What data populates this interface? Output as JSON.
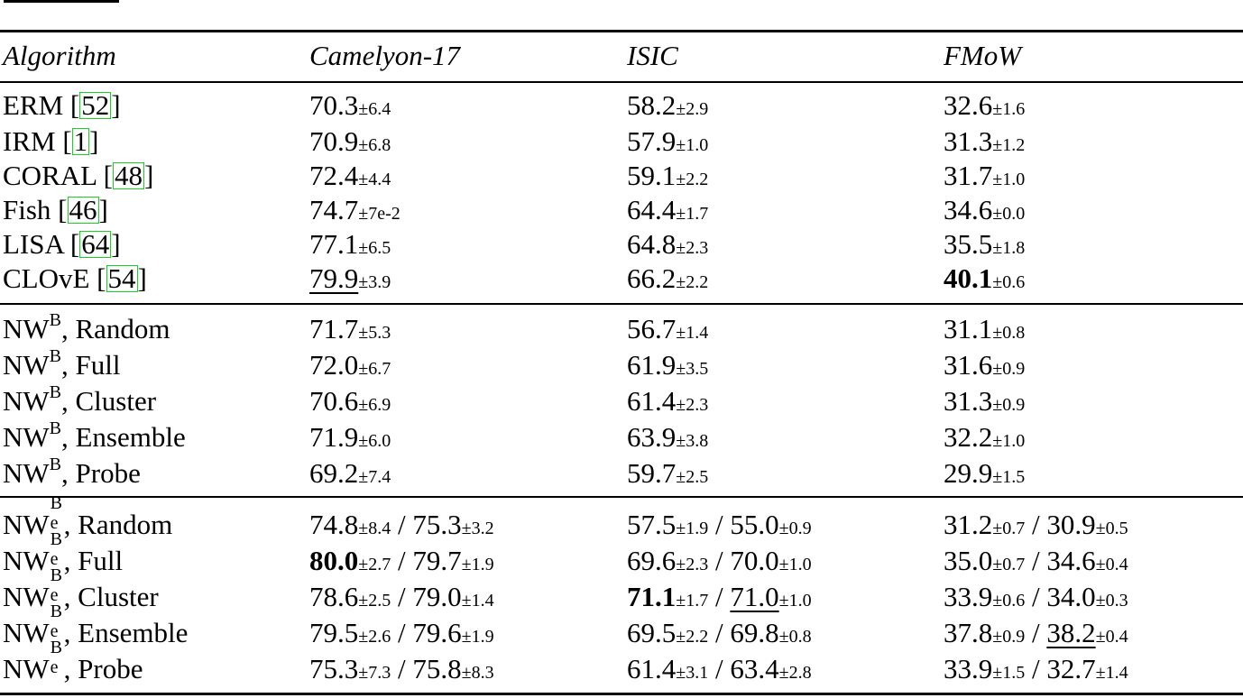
{
  "columns": [
    "Algorithm",
    "Camelyon-17",
    "ISIC",
    "FMoW"
  ],
  "section1": [
    {
      "name": "ERM [",
      "cite": "52",
      "close": "]",
      "cam": {
        "v": "70.3",
        "pm": "±6.4"
      },
      "isic": {
        "v": "58.2",
        "pm": "±2.9"
      },
      "fmow": {
        "v": "32.6",
        "pm": "±1.6"
      }
    },
    {
      "name": "IRM [",
      "cite": "1",
      "close": "]",
      "cam": {
        "v": "70.9",
        "pm": "±6.8"
      },
      "isic": {
        "v": "57.9",
        "pm": "±1.0"
      },
      "fmow": {
        "v": "31.3",
        "pm": "±1.2"
      }
    },
    {
      "name": "CORAL [",
      "cite": "48",
      "close": "]",
      "cam": {
        "v": "72.4",
        "pm": "±4.4"
      },
      "isic": {
        "v": "59.1",
        "pm": "±2.2"
      },
      "fmow": {
        "v": "31.7",
        "pm": "±1.0"
      }
    },
    {
      "name": "Fish [",
      "cite": "46",
      "close": "]",
      "cam": {
        "v": "74.7",
        "pm": "±7e-2"
      },
      "isic": {
        "v": "64.4",
        "pm": "±1.7"
      },
      "fmow": {
        "v": "34.6",
        "pm": "±0.0"
      }
    },
    {
      "name": "LISA [",
      "cite": "64",
      "close": "]",
      "cam": {
        "v": "77.1",
        "pm": "±6.5"
      },
      "isic": {
        "v": "64.8",
        "pm": "±2.3"
      },
      "fmow": {
        "v": "35.5",
        "pm": "±1.8"
      }
    },
    {
      "name": "CLOvE [",
      "cite": "54",
      "close": "]",
      "cam": {
        "v": "79.9",
        "pm": "±3.9"
      },
      "isic": {
        "v": "66.2",
        "pm": "±2.2"
      },
      "fmow": {
        "v": "40.1",
        "pm": "±0.6"
      }
    }
  ],
  "section2": {
    "prefix": "NW",
    "sup": "B",
    "rows": [
      {
        "suffix": ", Random",
        "cam": {
          "v": "71.7",
          "pm": "±5.3"
        },
        "isic": {
          "v": "56.7",
          "pm": "±1.4"
        },
        "fmow": {
          "v": "31.1",
          "pm": "±0.8"
        }
      },
      {
        "suffix": ", Full",
        "cam": {
          "v": "72.0",
          "pm": "±6.7"
        },
        "isic": {
          "v": "61.9",
          "pm": "±3.5"
        },
        "fmow": {
          "v": "31.6",
          "pm": "±0.9"
        }
      },
      {
        "suffix": ", Cluster",
        "cam": {
          "v": "70.6",
          "pm": "±6.9"
        },
        "isic": {
          "v": "61.4",
          "pm": "±2.3"
        },
        "fmow": {
          "v": "31.3",
          "pm": "±0.9"
        }
      },
      {
        "suffix": ", Ensemble",
        "cam": {
          "v": "71.9",
          "pm": "±6.0"
        },
        "isic": {
          "v": "63.9",
          "pm": "±3.8"
        },
        "fmow": {
          "v": "32.2",
          "pm": "±1.0"
        }
      },
      {
        "suffix": ", Probe",
        "cam": {
          "v": "69.2",
          "pm": "±7.4"
        },
        "isic": {
          "v": "59.7",
          "pm": "±2.5"
        },
        "fmow": {
          "v": "29.9",
          "pm": "±1.5"
        }
      }
    ]
  },
  "section3": {
    "prefix": "NW",
    "sup": "B",
    "sub": "e",
    "rows": [
      {
        "suffix": ", Random",
        "cam": {
          "a": "74.8",
          "apm": "±8.4",
          "b": "75.3",
          "bpm": "±3.2"
        },
        "isic": {
          "a": "57.5",
          "apm": "±1.9",
          "b": "55.0",
          "bpm": "±0.9"
        },
        "fmow": {
          "a": "31.2",
          "apm": "±0.7",
          "b": "30.9",
          "bpm": "±0.5"
        }
      },
      {
        "suffix": ", Full",
        "cam": {
          "a": "80.0",
          "apm": "±2.7",
          "b": "79.7",
          "bpm": "±1.9"
        },
        "isic": {
          "a": "69.6",
          "apm": "±2.3",
          "b": "70.0",
          "bpm": "±1.0"
        },
        "fmow": {
          "a": "35.0",
          "apm": "±0.7",
          "b": "34.6",
          "bpm": "±0.4"
        }
      },
      {
        "suffix": ", Cluster",
        "cam": {
          "a": "78.6",
          "apm": "±2.5",
          "b": "79.0",
          "bpm": "±1.4"
        },
        "isic": {
          "a": "71.1",
          "apm": "±1.7",
          "b": "71.0",
          "bpm": "±1.0"
        },
        "fmow": {
          "a": "33.9",
          "apm": "±0.6",
          "b": "34.0",
          "bpm": "±0.3"
        }
      },
      {
        "suffix": ", Ensemble",
        "cam": {
          "a": "79.5",
          "apm": "±2.6",
          "b": "79.6",
          "bpm": "±1.9"
        },
        "isic": {
          "a": "69.5",
          "apm": "±2.2",
          "b": "69.8",
          "bpm": "±0.8"
        },
        "fmow": {
          "a": "37.8",
          "apm": "±0.9",
          "b": "38.2",
          "bpm": "±0.4"
        }
      },
      {
        "suffix": ", Probe",
        "cam": {
          "a": "75.3",
          "apm": "±7.3",
          "b": "75.8",
          "bpm": "±8.3"
        },
        "isic": {
          "a": "61.4",
          "apm": "±3.1",
          "b": "63.4",
          "bpm": "±2.8"
        },
        "fmow": {
          "a": "33.9",
          "apm": "±1.5",
          "b": "32.7",
          "bpm": "±1.4"
        }
      }
    ]
  }
}
